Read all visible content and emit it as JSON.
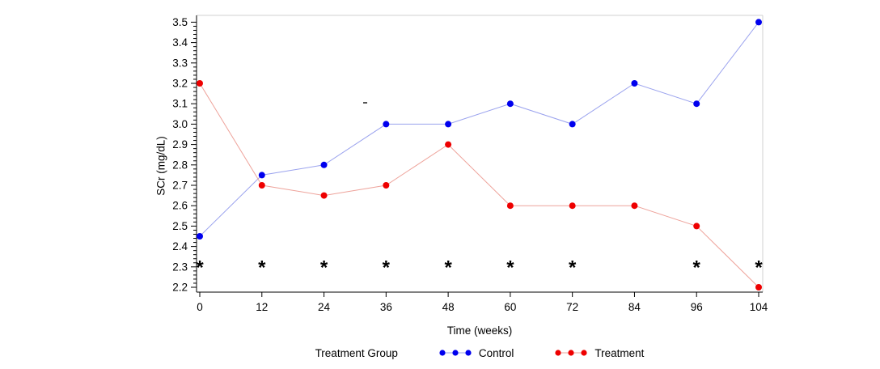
{
  "chart_data": {
    "type": "line",
    "title": "",
    "xlabel": "Time (weeks)",
    "ylabel": "SCr (mg/dL)",
    "x_categories": [
      "0",
      "12",
      "24",
      "36",
      "48",
      "60",
      "72",
      "84",
      "96",
      "104"
    ],
    "x_values": [
      0,
      12,
      24,
      36,
      48,
      60,
      72,
      84,
      96,
      104
    ],
    "y_axis": {
      "min": 2.2,
      "max": 3.5,
      "major_step": 0.1,
      "minor_ticks_per_major": 4,
      "tick_labels": [
        "2.2",
        "2.3",
        "2.4",
        "2.5",
        "2.6",
        "2.7",
        "2.8",
        "2.9",
        "3.0",
        "3.1",
        "3.2",
        "3.3",
        "3.4",
        "3.5"
      ]
    },
    "series": [
      {
        "name": "Control",
        "marker_color": "#0000ee",
        "line_color": "#9ba3ee",
        "values": [
          2.45,
          2.75,
          2.8,
          3.0,
          3.0,
          3.1,
          3.0,
          3.2,
          3.1,
          3.5
        ]
      },
      {
        "name": "Treatment",
        "marker_color": "#ee0000",
        "line_color": "#eea39b",
        "values": [
          3.2,
          2.7,
          2.65,
          2.7,
          2.9,
          2.6,
          2.6,
          2.6,
          2.5,
          2.2
        ]
      }
    ],
    "annotations": {
      "symbol": "*",
      "y_value": 2.31,
      "at_x_categories": [
        "0",
        "12",
        "24",
        "36",
        "48",
        "60",
        "72",
        "96",
        "104"
      ]
    },
    "legend": {
      "title": "Treatment Group",
      "position": "bottom"
    },
    "colors": {
      "axis": "#000000",
      "frame": "#d2d2d2",
      "text": "#000000",
      "annotation": "#000000",
      "background": "#ffffff",
      "artifact": "#555555"
    },
    "grid": "off"
  }
}
